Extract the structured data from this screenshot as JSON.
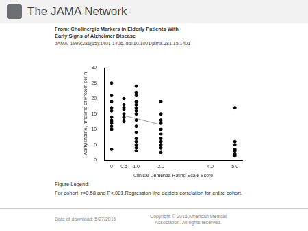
{
  "header": {
    "logo": "The JAMA Network",
    "from": "From: Cholinergic Markers in Elderly Patients With Early Signs of Alzheimer Disease",
    "citation": "JAMA. 1999;281(15):1401-1406. doi:10.1001/jama.281.15.1401"
  },
  "chart_data": {
    "type": "scatter",
    "x_label": "Clinical Dementia Rating Scale Score",
    "y_label": "Acetylcholine, nmol/mg of Protein per h",
    "x": [
      0,
      0,
      0,
      0,
      0,
      0,
      0,
      0,
      0,
      0,
      0,
      0,
      0.5,
      0.5,
      0.5,
      0.5,
      0.5,
      0.5,
      0.5,
      0.5,
      1,
      1,
      1,
      1,
      1,
      1,
      1,
      1,
      1,
      1,
      1,
      1,
      1,
      1,
      1,
      1,
      2,
      2,
      2,
      2,
      2,
      2,
      2,
      2,
      2,
      2,
      2,
      5,
      5,
      5,
      5,
      5,
      5,
      5
    ],
    "y": [
      25,
      21,
      19,
      17,
      16,
      14,
      13,
      12.5,
      12,
      11,
      10,
      3.5,
      20,
      18,
      17,
      16.5,
      15,
      14,
      13,
      12.5,
      24,
      22,
      21,
      19,
      18,
      17,
      16,
      15,
      13,
      11,
      9,
      7,
      6,
      5,
      4,
      3,
      19,
      15,
      13,
      12,
      10,
      8.5,
      7,
      6,
      5,
      4,
      2.5,
      17,
      6,
      5,
      3.5,
      3,
      2,
      1.5
    ],
    "color": "#000000",
    "marker": "circle",
    "regression": {
      "x": [
        0.5,
        2
      ],
      "y": [
        14.5,
        11.5
      ],
      "color": "#999999",
      "line_style": "solid"
    },
    "xlim": [
      -0.3,
      5.3
    ],
    "xticks": [
      0,
      0.5,
      {
        "value": 1,
        "label": "1.0"
      },
      {
        "value": 2,
        "label": "2.0"
      },
      {
        "value": 4,
        "label": "4.0"
      },
      {
        "value": 5,
        "label": "5.0"
      }
    ],
    "ylim": [
      0,
      30
    ],
    "yticks": [
      0,
      5,
      10,
      15,
      20,
      25,
      30
    ],
    "grid": false
  },
  "figure_legend": {
    "heading": "Figure Legend:",
    "text": "For cohort, r=0.58 and P<.001.Regression line depicts correlation for entire cohort."
  },
  "footer": {
    "date": "Date of download: 5/27/2016",
    "copyright": "Copyright © 2016 American Medical Association. All rights reserved."
  }
}
